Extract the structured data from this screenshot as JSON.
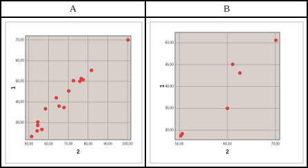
{
  "headers": [
    "A",
    "B"
  ],
  "chart_data": [
    {
      "type": "scatter",
      "x_label": "2",
      "y_label": "1",
      "color": "#e23b3f",
      "grid": true,
      "x": [
        51.4,
        54.2,
        54.5,
        54.5,
        56.6,
        58.4,
        63.9,
        65.3,
        67.8,
        70.2,
        72.6,
        75.8,
        76.5,
        77.5,
        81.7,
        100.2
      ],
      "values": [
        23.3,
        26,
        28.7,
        30.3,
        26.7,
        36.7,
        42,
        38,
        37.3,
        45.3,
        50.3,
        50,
        51.3,
        50.7,
        55.3,
        70
      ],
      "xlim": [
        48.3,
        101.7
      ],
      "ylim": [
        21.7,
        72
      ],
      "xticks": [
        {
          "value": 50,
          "label": "50,00"
        },
        {
          "value": 60,
          "label": "60,00"
        },
        {
          "value": 70,
          "label": "70,00"
        },
        {
          "value": 80,
          "label": "80,00"
        },
        {
          "value": 90,
          "label": "90,00"
        },
        {
          "value": 100,
          "label": "100,00"
        }
      ],
      "yticks": [
        {
          "value": 30,
          "label": "30,00"
        },
        {
          "value": 40,
          "label": "40,00"
        },
        {
          "value": 50,
          "label": "50,00"
        },
        {
          "value": 60,
          "label": "60,00"
        },
        {
          "value": 70,
          "label": "70,00"
        }
      ]
    },
    {
      "type": "scatter",
      "x_label": "2",
      "y_label": "1",
      "color": "#e23b3f",
      "grid": true,
      "x": [
        50.3,
        50.6,
        60,
        61.1,
        62.6,
        70.1
      ],
      "values": [
        28.7,
        29.2,
        35,
        45.1,
        43.1,
        50.6
      ],
      "xlim": [
        49.1,
        70.9
      ],
      "ylim": [
        27.8,
        52.4
      ],
      "xticks": [
        {
          "value": 50,
          "label": "50,00"
        },
        {
          "value": 60,
          "label": "60,00"
        },
        {
          "value": 70,
          "label": "70,00"
        }
      ],
      "yticks": [
        {
          "value": 30,
          "label": "30,00"
        },
        {
          "value": 35,
          "label": "35,00"
        },
        {
          "value": 40,
          "label": "40,00"
        },
        {
          "value": 45,
          "label": "45,00"
        },
        {
          "value": 50,
          "label": "50,00"
        }
      ]
    }
  ]
}
